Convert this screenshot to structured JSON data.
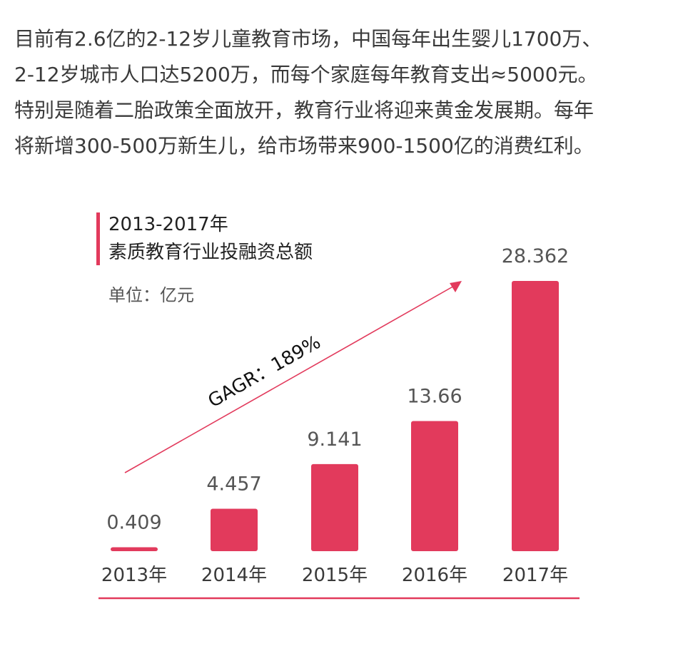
{
  "intro": {
    "lines": [
      "目前有2.6亿的2-12岁儿童教育市场，中国每年出生婴儿1700万、",
      "2-12岁城市人口达5200万，而每个家庭每年教育支出≈5000元。",
      "特别是随着二胎政策全面放开，教育行业将迎来黄金发展期。每年",
      "将新增300-500万新生儿，给市场带来900-1500亿的消费红利。"
    ]
  },
  "chart_data": {
    "type": "bar",
    "title": "2013-2017年",
    "subtitle": "素质教育行业投融资总额",
    "unit_label": "单位：亿元",
    "categories": [
      "2013年",
      "2014年",
      "2015年",
      "2016年",
      "2017年"
    ],
    "values": [
      0.409,
      4.457,
      9.141,
      13.66,
      28.362
    ],
    "value_labels": [
      "0.409",
      "4.457",
      "9.141",
      "13.66",
      "28.362"
    ],
    "annotation": "GAGR：189%",
    "ylim": [
      0,
      28.362
    ],
    "grid": false,
    "legend": "none",
    "colors": {
      "bar": "#e23a5c",
      "accent": "#e23a5c",
      "text": "#3a3a3a",
      "value_text": "#555555"
    }
  }
}
